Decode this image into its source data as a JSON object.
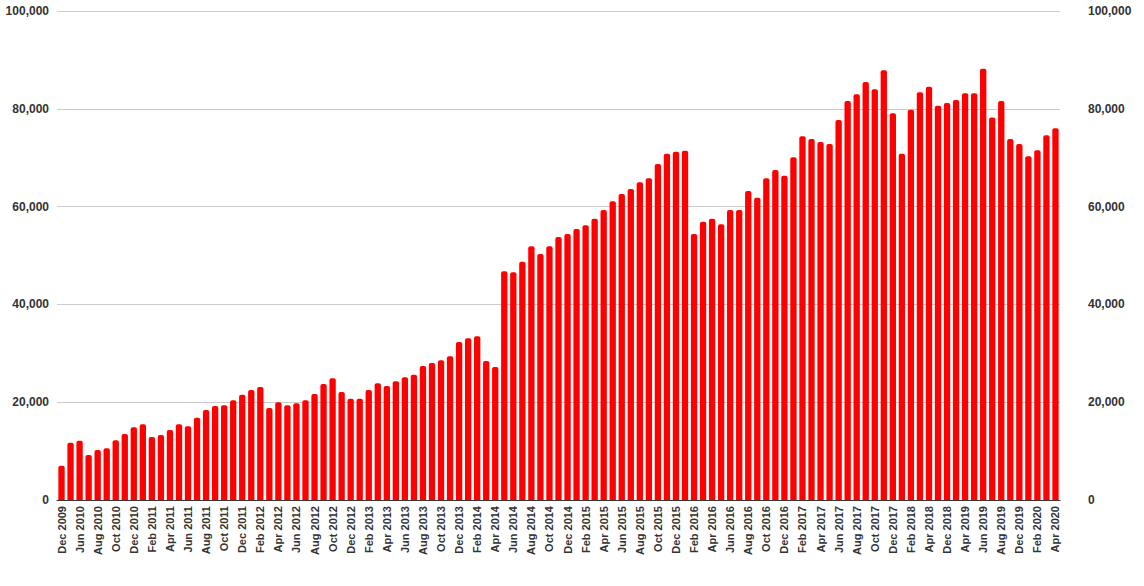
{
  "chart_data": {
    "type": "bar",
    "categories": [
      "Dec 2009",
      null,
      "Jun 2010",
      null,
      "Aug 2010",
      null,
      "Oct 2010",
      null,
      "Dec 2010",
      null,
      "Feb 2011",
      null,
      "Apr 2011",
      null,
      "Jun 2011",
      null,
      "Aug 2011",
      null,
      "Oct 2011",
      null,
      "Dec 2011",
      null,
      "Feb 2012",
      null,
      "Apr 2012",
      null,
      "Jun 2012",
      null,
      "Aug 2012",
      null,
      "Oct 2012",
      null,
      "Dec 2012",
      null,
      "Feb 2013",
      null,
      "Apr 2013",
      null,
      "Jun 2013",
      null,
      "Aug 2013",
      null,
      "Oct 2013",
      null,
      "Dec 2013",
      null,
      "Feb 2014",
      null,
      "Apr 2014",
      null,
      "Jun 2014",
      null,
      "Aug 2014",
      null,
      "Oct 2014",
      null,
      "Dec 2014",
      null,
      "Feb 2015",
      null,
      "Apr 2015",
      null,
      "Jun 2015",
      null,
      "Aug 2015",
      null,
      "Oct 2015",
      null,
      "Dec 2015",
      null,
      "Feb 2016",
      null,
      "Apr 2016",
      null,
      "Jun 2016",
      null,
      "Aug 2016",
      null,
      "Oct 2016",
      null,
      "Dec 2016",
      null,
      "Feb 2017",
      null,
      "Apr 2017",
      null,
      "Jun 2017",
      null,
      "Aug 2017",
      null,
      "Oct 2017",
      null,
      "Dec 2017",
      null,
      "Feb 2018",
      null,
      "Apr 2018",
      null,
      "Dec 2018",
      null,
      "Apr 2019",
      null,
      "Jun 2019",
      null,
      "Aug 2019",
      null,
      "Dec 2019",
      null,
      "Feb 2020",
      null,
      "Apr 2020"
    ],
    "values": [
      7000,
      11700,
      12100,
      9200,
      10200,
      10600,
      12200,
      13500,
      14900,
      15500,
      12900,
      13300,
      14300,
      15500,
      15100,
      16800,
      18400,
      19200,
      19400,
      20400,
      21500,
      22500,
      23100,
      18800,
      20000,
      19400,
      19800,
      20400,
      21700,
      23700,
      24900,
      22100,
      20700,
      20700,
      22500,
      23900,
      23300,
      24300,
      25100,
      25600,
      27400,
      28000,
      28600,
      29400,
      32300,
      33100,
      33500,
      28400,
      27200,
      46800,
      46600,
      48700,
      51900,
      50300,
      51900,
      53800,
      54400,
      55400,
      56200,
      57500,
      59300,
      61100,
      62600,
      63600,
      65000,
      65800,
      68700,
      70800,
      71200,
      71400,
      54400,
      56900,
      57500,
      56400,
      59300,
      59300,
      63200,
      61800,
      65800,
      67500,
      66300,
      70100,
      74400,
      73800,
      73200,
      72800,
      77700,
      81600,
      83000,
      85500,
      84000,
      87900,
      79100,
      70800,
      79800,
      83400,
      84500,
      80600,
      81200,
      81800,
      83200,
      83200,
      88200,
      78200,
      81600,
      73800,
      72800,
      70300,
      71500,
      74600,
      76000
    ],
    "color": "#ff0000",
    "ylim": [
      0,
      100000
    ],
    "yticks": [
      0,
      {
        "value": 20000,
        "label": "20,000"
      },
      {
        "value": 40000,
        "label": "40,000"
      },
      {
        "value": 60000,
        "label": "60,000"
      },
      {
        "value": 80000,
        "label": "80,000"
      },
      {
        "value": 100000,
        "label": "100,000"
      }
    ],
    "y2lim": [
      0,
      100000
    ],
    "y2ticks": [
      0,
      {
        "value": 20000,
        "label": "20,000"
      },
      {
        "value": 40000,
        "label": "40,000"
      },
      {
        "value": 60000,
        "label": "60,000"
      },
      {
        "value": 80000,
        "label": "80,000"
      },
      {
        "value": 100000,
        "label": "100,000"
      }
    ],
    "grid": true
  }
}
